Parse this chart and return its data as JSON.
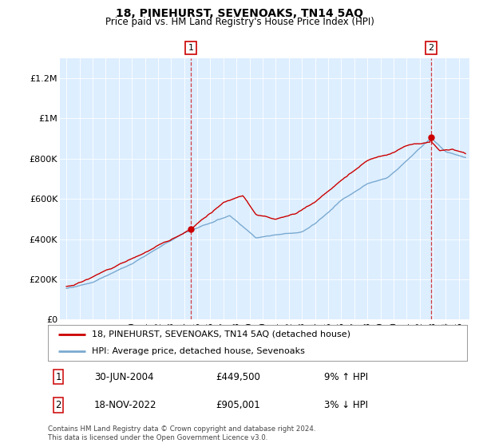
{
  "title": "18, PINEHURST, SEVENOAKS, TN14 5AQ",
  "subtitle": "Price paid vs. HM Land Registry's House Price Index (HPI)",
  "ylabel_ticks": [
    "£0",
    "£200K",
    "£400K",
    "£600K",
    "£800K",
    "£1M",
    "£1.2M"
  ],
  "ytick_vals": [
    0,
    200000,
    400000,
    600000,
    800000,
    1000000,
    1200000
  ],
  "ylim": [
    0,
    1300000
  ],
  "xlim_start": 1994.5,
  "xlim_end": 2025.8,
  "sale1_date": 2004.5,
  "sale1_price": 449500,
  "sale1_label": "1",
  "sale2_date": 2022.88,
  "sale2_price": 905001,
  "sale2_label": "2",
  "line_color_property": "#cc0000",
  "line_color_hpi": "#7aaad0",
  "bg_color": "#ddeeff",
  "legend_line1": "18, PINEHURST, SEVENOAKS, TN14 5AQ (detached house)",
  "legend_line2": "HPI: Average price, detached house, Sevenoaks",
  "annotation1_date": "30-JUN-2004",
  "annotation1_price": "£449,500",
  "annotation1_pct": "9% ↑ HPI",
  "annotation2_date": "18-NOV-2022",
  "annotation2_price": "£905,001",
  "annotation2_pct": "3% ↓ HPI",
  "footer": "Contains HM Land Registry data © Crown copyright and database right 2024.\nThis data is licensed under the Open Government Licence v3.0."
}
